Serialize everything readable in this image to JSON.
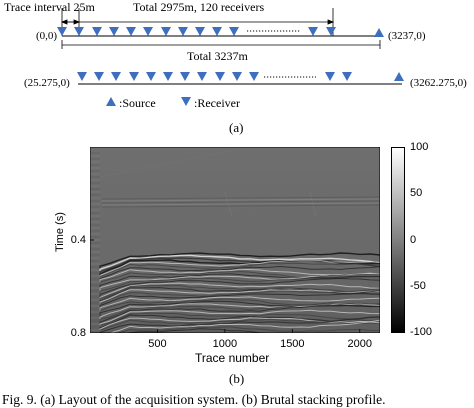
{
  "layout": {
    "label_trace_interval": "Trace interval 25m",
    "label_total_receivers": "Total 2975m, 120 receivers",
    "label_total_length": "Total 3237m",
    "line1_left_coord": "(0,0)",
    "line1_right_coord": "(3237,0)",
    "line2_left_coord": "(25.275,0)",
    "line2_right_coord": "(3262.275,0)",
    "legend_source": ":Source",
    "legend_receiver": ":Receiver",
    "panel_label": "(a)",
    "colors": {
      "marker": "#3e6fbf",
      "line": "#000000"
    }
  },
  "profile": {
    "panel_label": "(b)",
    "ylabel": "Time (s)",
    "xlabel": "Trace number",
    "x_ticks": [
      "500",
      "1000",
      "1500",
      "2000"
    ],
    "y_ticks": [
      "0.4",
      "0.8"
    ],
    "colorbar_ticks": [
      "100",
      "50",
      "0",
      "-50",
      "-100"
    ]
  },
  "caption": {
    "text": "Fig. 9.   (a) Layout of the acquisition system. (b) Brutal stacking profile."
  },
  "chart_data": {
    "type": "heatmap",
    "x_range": [
      0,
      2150
    ],
    "y_range": [
      0.8,
      0.0
    ],
    "xlabel": "Trace number",
    "ylabel": "Time (s)",
    "colorbar_range": [
      -100,
      100
    ],
    "colormap": "gray"
  }
}
